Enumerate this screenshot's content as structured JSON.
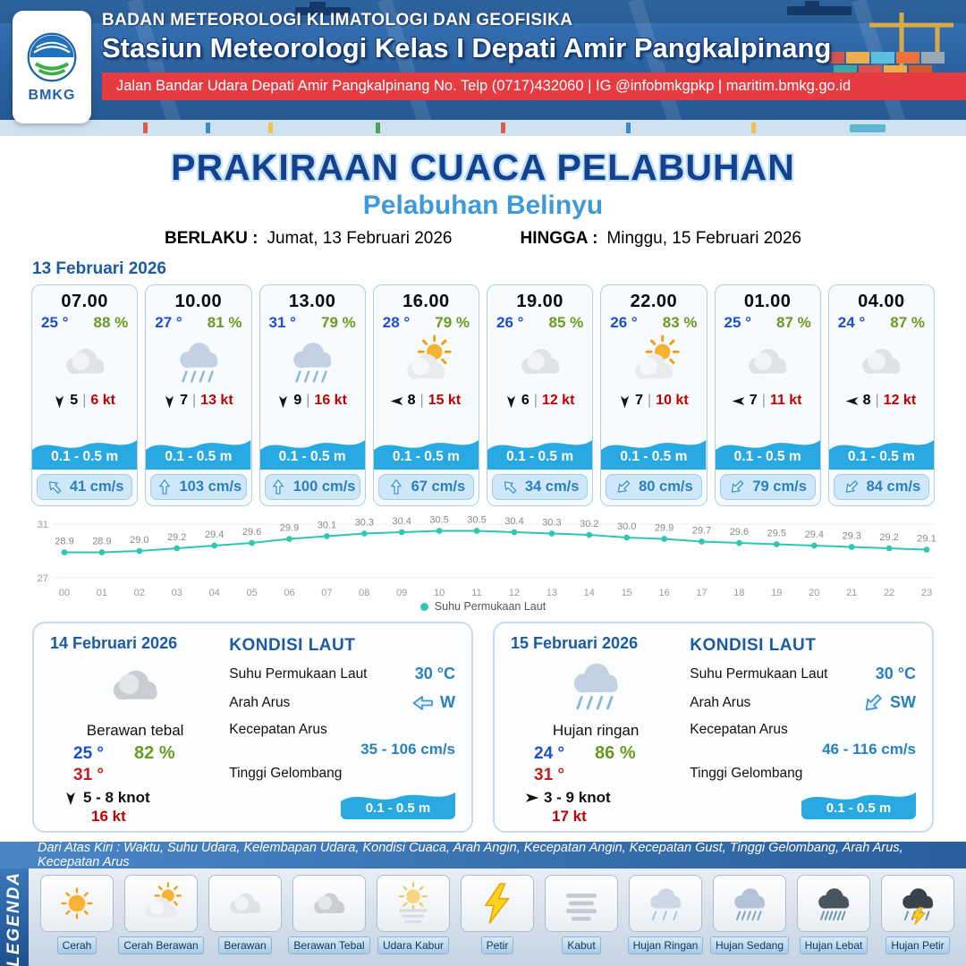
{
  "header": {
    "logo_text": "BMKG",
    "agency": "BADAN METEOROLOGI KLIMATOLOGI DAN GEOFISIKA",
    "station": "Stasiun Meteorologi Kelas I Depati Amir Pangkalpinang",
    "address": "Jalan Bandar Udara Depati Amir Pangkalpinang No. Telp (0717)432060 | IG @infobmkgpkp | maritim.bmkg.go.id"
  },
  "title": {
    "main": "PRAKIRAAN CUACA PELABUHAN",
    "subtitle": "Pelabuhan Belinyu",
    "valid_label": "BERLAKU :",
    "valid_value": "Jumat, 13 Februari 2026",
    "until_label": "HINGGA :",
    "until_value": "Minggu, 15 Februari 2026"
  },
  "forecast": {
    "date": "13 Februari 2026",
    "cards": [
      {
        "time": "07.00",
        "temp": "25 °",
        "humidity": "88 %",
        "icon": "cloud",
        "wind_dir": "down",
        "wind": "5",
        "gust": "6 kt",
        "wave": "0.1 - 0.5 m",
        "current_dir": "up-left",
        "current": "41 cm/s"
      },
      {
        "time": "10.00",
        "temp": "27 °",
        "humidity": "81 %",
        "icon": "rain",
        "wind_dir": "down",
        "wind": "7",
        "gust": "13 kt",
        "wave": "0.1 - 0.5 m",
        "current_dir": "up",
        "current": "103 cm/s"
      },
      {
        "time": "13.00",
        "temp": "31 °",
        "humidity": "79 %",
        "icon": "rain",
        "wind_dir": "down",
        "wind": "9",
        "gust": "16 kt",
        "wave": "0.1 - 0.5 m",
        "current_dir": "up",
        "current": "100 cm/s"
      },
      {
        "time": "16.00",
        "temp": "28 °",
        "humidity": "79 %",
        "icon": "sun-cloud",
        "wind_dir": "left",
        "wind": "8",
        "gust": "15 kt",
        "wave": "0.1 - 0.5 m",
        "current_dir": "up",
        "current": "67 cm/s"
      },
      {
        "time": "19.00",
        "temp": "26 °",
        "humidity": "85 %",
        "icon": "cloud",
        "wind_dir": "down",
        "wind": "6",
        "gust": "12 kt",
        "wave": "0.1 - 0.5 m",
        "current_dir": "up-left",
        "current": "34 cm/s"
      },
      {
        "time": "22.00",
        "temp": "26 °",
        "humidity": "83 %",
        "icon": "sun-cloud",
        "wind_dir": "down",
        "wind": "7",
        "gust": "10 kt",
        "wave": "0.1 - 0.5 m",
        "current_dir": "down-left",
        "current": "80 cm/s"
      },
      {
        "time": "01.00",
        "temp": "25 °",
        "humidity": "87 %",
        "icon": "cloud",
        "wind_dir": "left",
        "wind": "7",
        "gust": "11 kt",
        "wave": "0.1 - 0.5 m",
        "current_dir": "down-left",
        "current": "79 cm/s"
      },
      {
        "time": "04.00",
        "temp": "24 °",
        "humidity": "87 %",
        "icon": "cloud",
        "wind_dir": "left",
        "wind": "8",
        "gust": "12 kt",
        "wave": "0.1 - 0.5 m",
        "current_dir": "down-left",
        "current": "84 cm/s"
      }
    ]
  },
  "chart_data": {
    "type": "line",
    "legend": "Suhu Permukaan Laut",
    "color": "#2fc7b2",
    "ylim": [
      27,
      31
    ],
    "x": [
      "00",
      "01",
      "02",
      "03",
      "04",
      "05",
      "06",
      "07",
      "08",
      "09",
      "10",
      "11",
      "12",
      "13",
      "14",
      "15",
      "16",
      "17",
      "18",
      "19",
      "20",
      "21",
      "22",
      "23"
    ],
    "values": [
      28.9,
      28.9,
      29.0,
      29.2,
      29.4,
      29.6,
      29.9,
      30.1,
      30.3,
      30.4,
      30.5,
      30.5,
      30.4,
      30.3,
      30.2,
      30.0,
      29.9,
      29.7,
      29.6,
      29.5,
      29.4,
      29.3,
      29.2,
      29.1
    ]
  },
  "days": [
    {
      "date": "14 Februari 2026",
      "icon": "cloud-thick",
      "condition": "Berawan tebal",
      "temp_min": "25 °",
      "humidity": "82 %",
      "temp_max": "31 °",
      "wind_dir": "down",
      "wind": "5 - 8 knot",
      "gust": "16 kt",
      "sea": {
        "title": "KONDISI LAUT",
        "sst_label": "Suhu Permukaan Laut",
        "sst_value": "30 °C",
        "dir_label": "Arah Arus",
        "dir_arrow": "left",
        "dir_value": "W",
        "speed_label": "Kecepatan Arus",
        "speed_value": "35 - 106 cm/s",
        "wave_label": "Tinggi Gelombang",
        "wave_value": "0.1 - 0.5 m"
      }
    },
    {
      "date": "15 Februari 2026",
      "icon": "rain",
      "condition": "Hujan ringan",
      "temp_min": "24 °",
      "humidity": "86 %",
      "temp_max": "31 °",
      "wind_dir": "right",
      "wind": "3 - 9 knot",
      "gust": "17 kt",
      "sea": {
        "title": "KONDISI LAUT",
        "sst_label": "Suhu Permukaan Laut",
        "sst_value": "30 °C",
        "dir_label": "Arah Arus",
        "dir_arrow": "down-left",
        "dir_value": "SW",
        "speed_label": "Kecepatan Arus",
        "speed_value": "46 - 116 cm/s",
        "wave_label": "Tinggi Gelombang",
        "wave_value": "0.1 - 0.5 m"
      }
    }
  ],
  "legend": {
    "note": "Dari Atas Kiri : Waktu, Suhu Udara, Kelembapan Udara, Kondisi Cuaca, Arah Angin, Kecepatan Angin, Kecepatan Gust, Tinggi Gelombang, Arah Arus, Kecepatan Arus",
    "title": "LEGENDA",
    "items": [
      {
        "label": "Cerah",
        "icon": "sun"
      },
      {
        "label": "Cerah Berawan",
        "icon": "sun-cloud"
      },
      {
        "label": "Berawan",
        "icon": "cloud"
      },
      {
        "label": "Berawan Tebal",
        "icon": "cloud-thick"
      },
      {
        "label": "Udara Kabur",
        "icon": "haze"
      },
      {
        "label": "Petir",
        "icon": "lightning"
      },
      {
        "label": "Kabut",
        "icon": "fog"
      },
      {
        "label": "Hujan Ringan",
        "icon": "rain-light"
      },
      {
        "label": "Hujan Sedang",
        "icon": "rain-medium"
      },
      {
        "label": "Hujan Lebat",
        "icon": "rain-heavy"
      },
      {
        "label": "Hujan Petir",
        "icon": "rain-lightning"
      }
    ]
  }
}
